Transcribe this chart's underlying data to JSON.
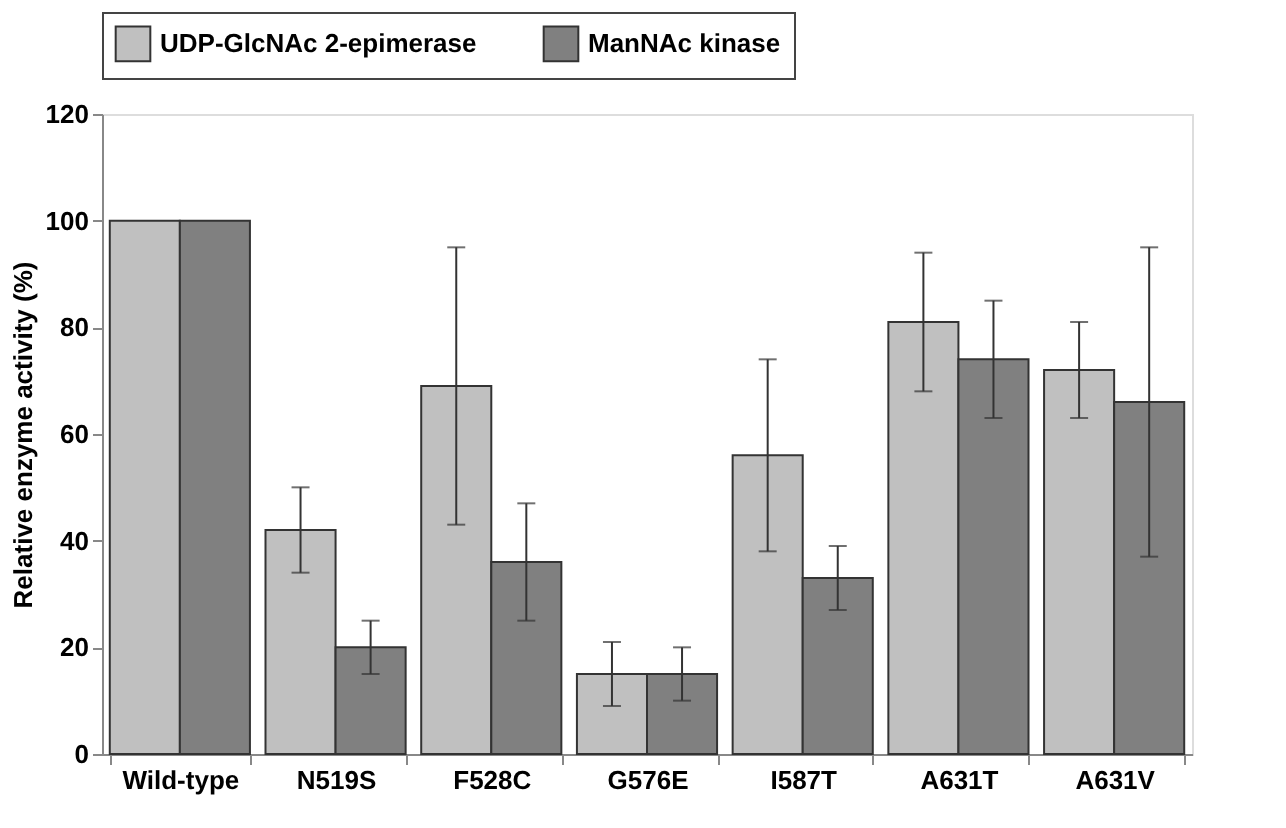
{
  "chart_data": {
    "type": "bar",
    "ylabel": "Relative enzyme activity (%)",
    "categories": [
      "Wild-type",
      "N519S",
      "F528C",
      "G576E",
      "I587T",
      "A631T",
      "A631V"
    ],
    "series": [
      {
        "name": "UDP-GlcNAc 2-epimerase",
        "color": "#c0c0c0",
        "values": [
          100,
          42,
          69,
          15,
          56,
          81,
          72
        ],
        "errors": [
          null,
          [
            34,
            50
          ],
          [
            43,
            95
          ],
          [
            9,
            21
          ],
          [
            38,
            74
          ],
          [
            68,
            94
          ],
          [
            63,
            81
          ]
        ]
      },
      {
        "name": "ManNAc kinase",
        "color": "#808080",
        "values": [
          100,
          20,
          36,
          15,
          33,
          74,
          66
        ],
        "errors": [
          null,
          [
            15,
            25
          ],
          [
            25,
            47
          ],
          [
            10,
            20
          ],
          [
            27,
            39
          ],
          [
            63,
            85
          ],
          [
            37,
            95
          ]
        ]
      }
    ],
    "ylim": [
      0,
      120
    ],
    "yticks": [
      0,
      20,
      40,
      60,
      80,
      100,
      120
    ],
    "grid": false,
    "legend": "top"
  }
}
